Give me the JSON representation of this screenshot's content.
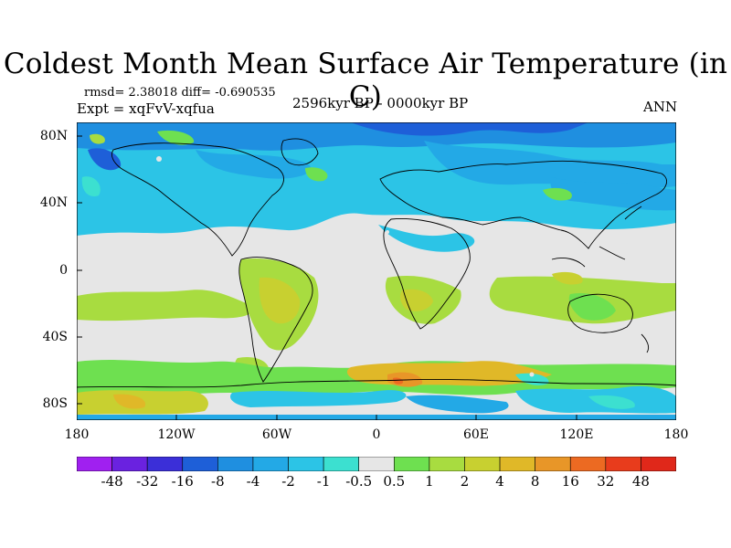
{
  "title": "Coldest Month Mean Surface Air Temperature (in C)",
  "stats_line": "rmsd= 2.38018 diff= -0.690535",
  "experiment_line": "Expt = xqFvV-xqfua",
  "period": "2596kyr BP - 0000kyr BP",
  "season": "ANN",
  "lat_labels": [
    "80N",
    "40N",
    "0",
    "40S",
    "80S"
  ],
  "lon_labels": [
    "180",
    "120W",
    "60W",
    "0",
    "60E",
    "120E",
    "180"
  ],
  "colorbar": {
    "labels": [
      "-48",
      "-32",
      "-16",
      "-8",
      "-4",
      "-2",
      "-1",
      "-0.5",
      "0.5",
      "1",
      "2",
      "4",
      "8",
      "16",
      "32",
      "48"
    ],
    "colors": [
      "#a020f0",
      "#6a22e0",
      "#3b2fd8",
      "#1e5fd8",
      "#1f8fe0",
      "#23a9e6",
      "#2cc4e6",
      "#3ce0d0",
      "#e6e6e6",
      "#6ee050",
      "#a8dc40",
      "#c8d030",
      "#e0b828",
      "#e89628",
      "#ec6a22",
      "#e83c1c",
      "#e0281a"
    ]
  }
}
